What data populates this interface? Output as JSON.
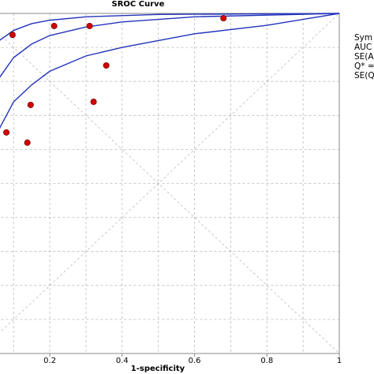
{
  "chart_data": {
    "type": "scatter",
    "title": "SROC Curve",
    "x_label": "1-specificity",
    "xlim": [
      0,
      1
    ],
    "ylim": [
      0,
      1
    ],
    "xticks": [
      0.2,
      0.4,
      0.6,
      0.8,
      1
    ],
    "xgrid": [
      0.1,
      0.2,
      0.3,
      0.4,
      0.5,
      0.6,
      0.7,
      0.8,
      0.9
    ],
    "ygrid": [
      0.1,
      0.2,
      0.3,
      0.4,
      0.5,
      0.6,
      0.7,
      0.8,
      0.9
    ],
    "grid": true,
    "points": {
      "color": "#d40000",
      "x": [
        0.097,
        0.212,
        0.31,
        0.68,
        0.356,
        0.147,
        0.321,
        0.08,
        0.138
      ],
      "y": [
        0.937,
        0.963,
        0.963,
        0.986,
        0.847,
        0.731,
        0.74,
        0.65,
        0.62
      ]
    },
    "curves": [
      {
        "color": "#2233bb",
        "x": [
          0.06,
          0.1,
          0.15,
          0.2,
          0.3,
          0.5,
          1
        ],
        "y": [
          0.92,
          0.95,
          0.97,
          0.98,
          0.99,
          0.997,
          1
        ]
      },
      {
        "color": "#2233bb",
        "x": [
          0.06,
          0.1,
          0.15,
          0.2,
          0.3,
          0.4,
          0.6,
          0.8,
          1
        ],
        "y": [
          0.81,
          0.87,
          0.91,
          0.935,
          0.96,
          0.975,
          0.99,
          0.995,
          1
        ]
      },
      {
        "color": "#2233bb",
        "x": [
          0.06,
          0.1,
          0.15,
          0.2,
          0.3,
          0.4,
          0.5,
          0.6,
          0.8,
          1
        ],
        "y": [
          0.66,
          0.74,
          0.79,
          0.83,
          0.875,
          0.9,
          0.92,
          0.94,
          0.965,
          1
        ]
      }
    ],
    "legend_text": [
      "Sym",
      "AUC",
      "SE(A",
      "Q* =",
      "SE(Q"
    ]
  }
}
